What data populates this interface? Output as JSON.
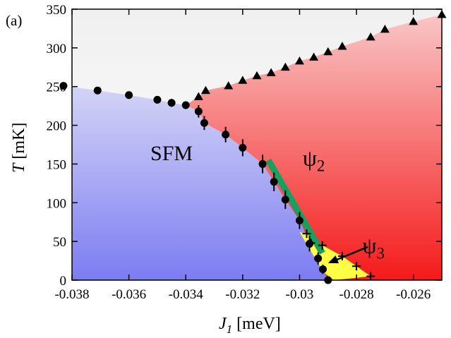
{
  "chart_data": {
    "type": "scatter",
    "panel_label": "(a)",
    "xlabel": {
      "var": "J",
      "sub": "1",
      "unit": "[meV]"
    },
    "ylabel": {
      "var": "T",
      "unit": "[mK]"
    },
    "xlim": [
      -0.038,
      -0.025
    ],
    "ylim": [
      0,
      350
    ],
    "xticks": [
      {
        "v": -0.038,
        "label": "-0.038"
      },
      {
        "v": -0.036,
        "label": "-0.036"
      },
      {
        "v": -0.034,
        "label": "-0.034"
      },
      {
        "v": -0.032,
        "label": "-0.032"
      },
      {
        "v": -0.03,
        "label": "-0.03"
      },
      {
        "v": -0.028,
        "label": "-0.028"
      },
      {
        "v": -0.026,
        "label": "-0.026"
      }
    ],
    "yticks": [
      {
        "v": 0,
        "label": "0"
      },
      {
        "v": 50,
        "label": "50"
      },
      {
        "v": 100,
        "label": "100"
      },
      {
        "v": 150,
        "label": "150"
      },
      {
        "v": 200,
        "label": "200"
      },
      {
        "v": 250,
        "label": "250"
      },
      {
        "v": 300,
        "label": "300"
      },
      {
        "v": 350,
        "label": "350"
      }
    ],
    "regions": [
      {
        "label": "SFM",
        "x": -0.0345,
        "y": 155,
        "size": 30
      },
      {
        "label": "ψ",
        "sub": "2",
        "x": -0.0295,
        "y": 148,
        "size": 32
      },
      {
        "label": "ψ",
        "sub": "3",
        "x": -0.0274,
        "y": 35,
        "size": 32
      }
    ],
    "circles": {
      "points": [
        [
          -0.0383,
          251
        ],
        [
          -0.0371,
          245
        ],
        [
          -0.036,
          239
        ],
        [
          -0.035,
          233
        ],
        [
          -0.0345,
          229
        ],
        [
          -0.034,
          226
        ],
        [
          -0.03355,
          218
        ],
        [
          -0.03335,
          203
        ],
        [
          -0.0326,
          188
        ],
        [
          -0.032,
          171
        ],
        [
          -0.0313,
          150
        ],
        [
          -0.0309,
          127
        ],
        [
          -0.0305,
          104
        ],
        [
          -0.03,
          77
        ],
        [
          -0.02965,
          47
        ],
        [
          -0.02935,
          28
        ],
        [
          -0.02918,
          14
        ],
        [
          -0.029,
          0
        ]
      ],
      "yerr": [
        0,
        0,
        0,
        0,
        5,
        5,
        8,
        9,
        10,
        11,
        12,
        12,
        12,
        11,
        10,
        8,
        6,
        0
      ]
    },
    "triangles": [
      [
        -0.03355,
        237
      ],
      [
        -0.0333,
        245
      ],
      [
        -0.0325,
        251
      ],
      [
        -0.032,
        258
      ],
      [
        -0.0315,
        264
      ],
      [
        -0.031,
        268
      ],
      [
        -0.0305,
        275
      ],
      [
        -0.03,
        283
      ],
      [
        -0.0295,
        288
      ],
      [
        -0.029,
        295
      ],
      [
        -0.0285,
        302
      ],
      [
        -0.0275,
        314
      ],
      [
        -0.027,
        324
      ],
      [
        -0.026,
        334
      ],
      [
        -0.025,
        343
      ]
    ],
    "crosses": [
      [
        -0.02975,
        60
      ],
      [
        -0.0296,
        48
      ],
      [
        -0.0292,
        45
      ],
      [
        -0.0285,
        31
      ],
      [
        -0.028,
        18
      ],
      [
        -0.0275,
        5
      ]
    ],
    "green_line": [
      [
        -0.0311,
        155
      ],
      [
        -0.0292,
        35
      ]
    ],
    "arrow": {
      "from": [
        -0.0276,
        43
      ],
      "to": [
        -0.029,
        22
      ]
    },
    "colors": {
      "sfm_top": "#d4d4f7",
      "sfm_bottom": "#7c7cf2",
      "psi2_top": "#f9c6c6",
      "psi2_bottom": "#f51a1a",
      "psi3": "#ffff44",
      "top_region_top": "#f0f0f0",
      "top_region_bottom": "#ffffff",
      "green_line": "#19a05e",
      "markers": "#000000"
    }
  }
}
